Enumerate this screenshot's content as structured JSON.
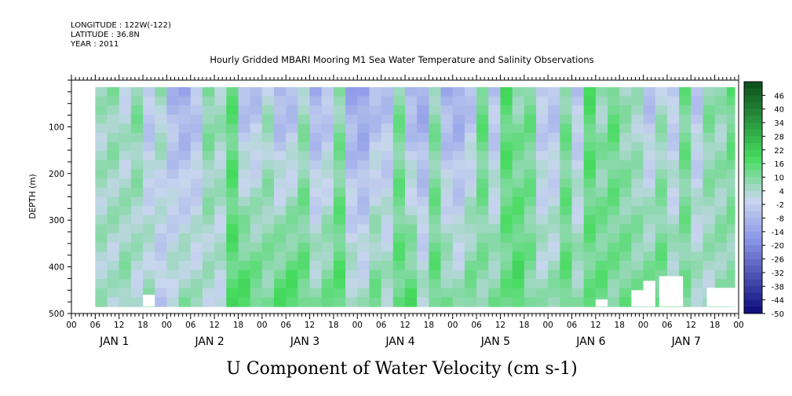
{
  "header": {
    "longitude": "LONGITUDE : 122W(-122)",
    "latitude": "LATITUDE : 36.8N",
    "year": "YEAR : 2011",
    "title": "Hourly Gridded MBARI Mooring M1 Sea Water Temperature and Salinity Observations"
  },
  "chart_data": {
    "type": "heatmap",
    "title": "Hourly Gridded MBARI Mooring M1 Sea Water Temperature and Salinity Observations",
    "xlabel": "U Component of Water Velocity (cm s-1)",
    "ylabel": "DEPTH (m)",
    "x_units": "hours since JAN 1 00:00",
    "xlim": [
      0,
      168
    ],
    "data_x_range": [
      6,
      167
    ],
    "ylim": [
      500,
      0
    ],
    "y_ticks": [
      100,
      200,
      300,
      400,
      500
    ],
    "hour_tick_labels": [
      "00",
      "06",
      "12",
      "18"
    ],
    "day_labels": [
      "JAN  1",
      "JAN  2",
      "JAN  3",
      "JAN  4",
      "JAN  5",
      "JAN  6",
      "JAN  7"
    ],
    "colorbar": {
      "min": -50,
      "max": 52,
      "levels": [
        46,
        40,
        34,
        28,
        22,
        16,
        10,
        4,
        -2,
        -8,
        -14,
        -20,
        -26,
        -32,
        -38,
        -44,
        -50
      ],
      "labels": [
        "46",
        "40",
        "34",
        "28",
        "22",
        "16",
        "10",
        "4",
        "-2",
        "-8",
        "-14",
        "-20",
        "-26",
        "-32",
        "-38",
        "-44",
        "-50"
      ],
      "color_negative": "#0b0b7a",
      "color_zero": "#c8d6ee",
      "color_positive": "#0b4d1a"
    },
    "columns": [
      {
        "t": 6,
        "surface": 5,
        "deep": 5
      },
      {
        "t": 9,
        "surface": 8,
        "deep": 3
      },
      {
        "t": 12,
        "surface": 2,
        "deep": 8
      },
      {
        "t": 15,
        "surface": 10,
        "deep": 2
      },
      {
        "t": 18,
        "surface": -5,
        "deep": 6
      },
      {
        "t": 21,
        "surface": 6,
        "deep": -4
      },
      {
        "t": 24,
        "surface": -8,
        "deep": 4
      },
      {
        "t": 27,
        "surface": -12,
        "deep": 8
      },
      {
        "t": 30,
        "surface": -6,
        "deep": 5
      },
      {
        "t": 33,
        "surface": 10,
        "deep": 3
      },
      {
        "t": 36,
        "surface": 6,
        "deep": 2
      },
      {
        "t": 39,
        "surface": 14,
        "deep": 16
      },
      {
        "t": 42,
        "surface": -8,
        "deep": 18
      },
      {
        "t": 45,
        "surface": -6,
        "deep": 14
      },
      {
        "t": 48,
        "surface": 4,
        "deep": 10
      },
      {
        "t": 51,
        "surface": -10,
        "deep": 16
      },
      {
        "t": 54,
        "surface": -8,
        "deep": 18
      },
      {
        "t": 57,
        "surface": 6,
        "deep": 14
      },
      {
        "t": 60,
        "surface": -10,
        "deep": 8
      },
      {
        "t": 63,
        "surface": -6,
        "deep": 12
      },
      {
        "t": 66,
        "surface": 8,
        "deep": 16
      },
      {
        "t": 69,
        "surface": -12,
        "deep": 6
      },
      {
        "t": 72,
        "surface": -14,
        "deep": 4
      },
      {
        "t": 75,
        "surface": -8,
        "deep": 12
      },
      {
        "t": 78,
        "surface": -6,
        "deep": 6
      },
      {
        "t": 81,
        "surface": 10,
        "deep": 14
      },
      {
        "t": 84,
        "surface": -10,
        "deep": 16
      },
      {
        "t": 87,
        "surface": -12,
        "deep": 4
      },
      {
        "t": 90,
        "surface": 8,
        "deep": 14
      },
      {
        "t": 93,
        "surface": -10,
        "deep": 10
      },
      {
        "t": 96,
        "surface": -12,
        "deep": 6
      },
      {
        "t": 99,
        "surface": -6,
        "deep": 12
      },
      {
        "t": 102,
        "surface": 14,
        "deep": 8
      },
      {
        "t": 105,
        "surface": -6,
        "deep": 10
      },
      {
        "t": 108,
        "surface": 16,
        "deep": 12
      },
      {
        "t": 111,
        "surface": 8,
        "deep": 18
      },
      {
        "t": 114,
        "surface": 12,
        "deep": 10
      },
      {
        "t": 117,
        "surface": -4,
        "deep": 6
      },
      {
        "t": 120,
        "surface": -6,
        "deep": 8
      },
      {
        "t": 123,
        "surface": 10,
        "deep": 14
      },
      {
        "t": 126,
        "surface": -4,
        "deep": 8
      },
      {
        "t": 129,
        "surface": 16,
        "deep": 12
      },
      {
        "t": 132,
        "surface": 6,
        "deep": 14
      },
      {
        "t": 135,
        "surface": 14,
        "deep": 10
      },
      {
        "t": 138,
        "surface": 6,
        "deep": 12
      },
      {
        "t": 141,
        "surface": 4,
        "deep": 10
      },
      {
        "t": 144,
        "surface": -6,
        "deep": 12
      },
      {
        "t": 147,
        "surface": 4,
        "deep": 14
      },
      {
        "t": 150,
        "surface": -4,
        "deep": 8
      },
      {
        "t": 153,
        "surface": 12,
        "deep": 10
      },
      {
        "t": 156,
        "surface": -4,
        "deep": 6
      },
      {
        "t": 159,
        "surface": 10,
        "deep": 4
      },
      {
        "t": 162,
        "surface": 6,
        "deep": 8
      },
      {
        "t": 165,
        "surface": 14,
        "deep": 6
      }
    ]
  }
}
